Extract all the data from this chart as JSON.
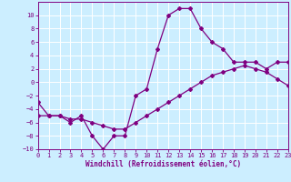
{
  "background_color": "#cceeff",
  "grid_color": "#ffffff",
  "line_color": "#800080",
  "xlim": [
    0,
    23
  ],
  "ylim": [
    -10,
    12
  ],
  "xticks": [
    0,
    1,
    2,
    3,
    4,
    5,
    6,
    7,
    8,
    9,
    10,
    11,
    12,
    13,
    14,
    15,
    16,
    17,
    18,
    19,
    20,
    21,
    22,
    23
  ],
  "yticks": [
    -10,
    -8,
    -6,
    -4,
    -2,
    0,
    2,
    4,
    6,
    8,
    10
  ],
  "hours": [
    0,
    1,
    2,
    3,
    4,
    5,
    6,
    7,
    8,
    9,
    10,
    11,
    12,
    13,
    14,
    15,
    16,
    17,
    18,
    19,
    20,
    21,
    22,
    23
  ],
  "temp_line": [
    -3,
    -5,
    -5,
    -6,
    -5,
    -8,
    -10,
    -8,
    -8,
    -2,
    -1,
    5,
    10,
    11,
    11,
    8,
    6,
    5,
    3,
    3,
    3,
    2,
    3,
    3
  ],
  "windchill_line": [
    -5,
    -5,
    -5,
    -5.5,
    -5.5,
    -6,
    -6.5,
    -7,
    -7,
    -6,
    -5,
    -4,
    -3,
    -2,
    -1,
    0,
    1,
    1.5,
    2,
    2.5,
    2,
    1.5,
    0.5,
    -0.5
  ],
  "xlabel": "Windchill (Refroidissement éolien,°C)"
}
